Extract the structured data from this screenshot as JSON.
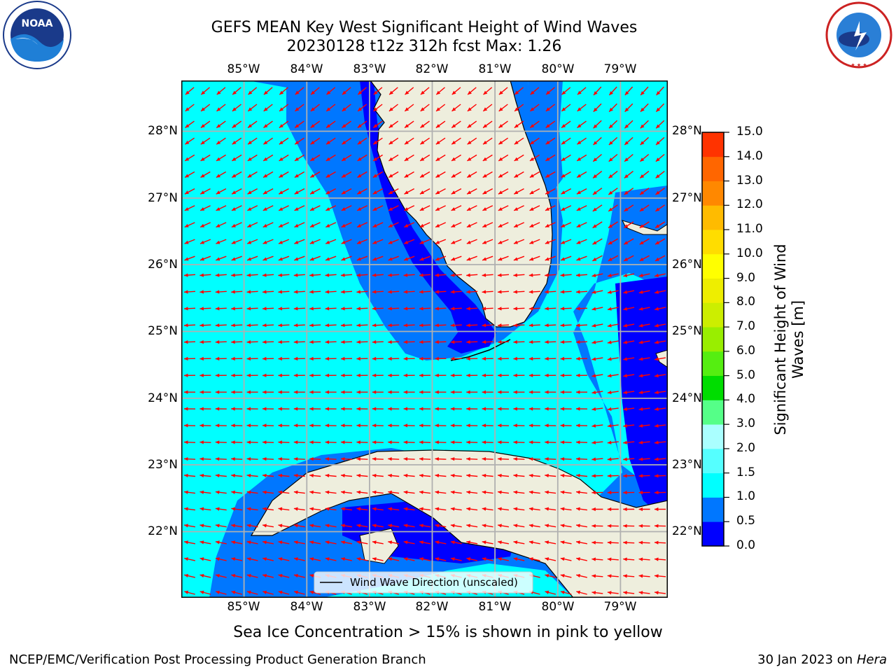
{
  "title": {
    "line1": "GEFS MEAN Key West Significant Height of Wind Waves",
    "line2": "20230128 t12z 312h fcst   Max: 1.26"
  },
  "logos": {
    "left": {
      "name": "noaa-logo",
      "text": "NOAA"
    },
    "right": {
      "name": "nws-logo",
      "text": "NATIONAL WEATHER SERVICE"
    }
  },
  "map": {
    "lon_labels": [
      "85°W",
      "84°W",
      "83°W",
      "82°W",
      "81°W",
      "80°W",
      "79°W"
    ],
    "lat_labels": [
      "28°N",
      "27°N",
      "26°N",
      "25°N",
      "24°N",
      "23°N",
      "22°N"
    ],
    "extent": {
      "lon_min": -86.0,
      "lon_max": -78.25,
      "lat_min": 21.0,
      "lat_max": 28.75
    },
    "legend_label": "Wind Wave Direction (unscaled)",
    "arrow_color": "#ff0000",
    "land_color": "#eeeedd",
    "gridlines": true
  },
  "colorbar": {
    "ticks": [
      "0.0",
      "0.5",
      "1.0",
      "1.5",
      "2.0",
      "3.0",
      "4.0",
      "5.0",
      "6.0",
      "7.0",
      "8.0",
      "9.0",
      "10.0",
      "11.0",
      "12.0",
      "13.0",
      "14.0",
      "15.0"
    ],
    "colors": [
      "#0000ff",
      "#0077ff",
      "#00ffff",
      "#55ffff",
      "#aaffff",
      "#55ff88",
      "#00dd00",
      "#55ee11",
      "#99ee00",
      "#ccee00",
      "#eeee00",
      "#ffff00",
      "#ffdd00",
      "#ffbb00",
      "#ff8800",
      "#ff6600",
      "#ff3300",
      "#ff0000"
    ],
    "label": "Significant Height of Wind Waves [m]",
    "label_line1": "Significant Height of Wind",
    "label_line2": "Waves [m]"
  },
  "chart_data": {
    "type": "heatmap",
    "title": "GEFS MEAN Key West Significant Height of Wind Waves",
    "subtitle": "20230128 t12z 312h fcst   Max: 1.26",
    "xlabel": "",
    "ylabel": "",
    "x_ticks": [
      "85°W",
      "84°W",
      "83°W",
      "82°W",
      "81°W",
      "80°W",
      "79°W"
    ],
    "y_ticks": [
      "28°N",
      "27°N",
      "26°N",
      "25°N",
      "24°N",
      "23°N",
      "22°N"
    ],
    "max": 1.26,
    "units": "m",
    "levels": [
      0.0,
      0.5,
      1.0,
      1.5,
      2.0,
      3.0,
      4.0,
      5.0,
      6.0,
      7.0,
      8.0,
      9.0,
      10.0,
      11.0,
      12.0,
      13.0,
      14.0,
      15.0
    ]
  },
  "note": "Sea Ice Concentration > 15% is shown in pink to yellow",
  "footer": {
    "left": "NCEP/EMC/Verification Post Processing Product Generation Branch",
    "right_date": "30 Jan 2023 on ",
    "right_machine": "Hera"
  }
}
